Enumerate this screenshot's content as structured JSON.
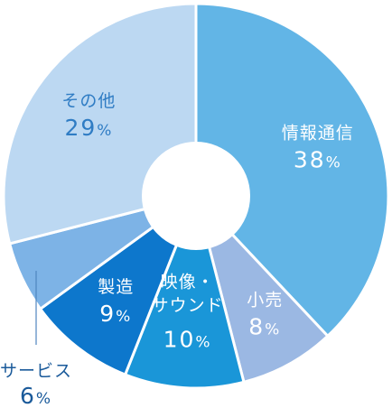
{
  "chart_data": {
    "type": "pie",
    "variant": "donut",
    "title": "",
    "legend": "none",
    "slices": [
      {
        "name": "情報通信",
        "value": 38,
        "display": "38",
        "unit": "%",
        "color": "#62b5e6",
        "text_color": "#ffffff"
      },
      {
        "name": "小売",
        "value": 8,
        "display": "8",
        "unit": "%",
        "color": "#9bb8e3",
        "text_color": "#ffffff"
      },
      {
        "name_lines": [
          "映像・",
          "サウンド"
        ],
        "value": 10,
        "display": "10",
        "unit": "%",
        "color": "#1a96d8",
        "text_color": "#ffffff"
      },
      {
        "name": "製造",
        "value": 9,
        "display": "9",
        "unit": "%",
        "color": "#0d77cc",
        "text_color": "#ffffff"
      },
      {
        "name": "サービス",
        "value": 6,
        "display": "6",
        "unit": "%",
        "color": "#7db3e6",
        "text_color": "#1a5a9a",
        "label_outside": true
      },
      {
        "name": "その他",
        "value": 29,
        "display": "29",
        "unit": "%",
        "color": "#bcd8f2",
        "text_color": "#2f7cc4"
      }
    ]
  }
}
